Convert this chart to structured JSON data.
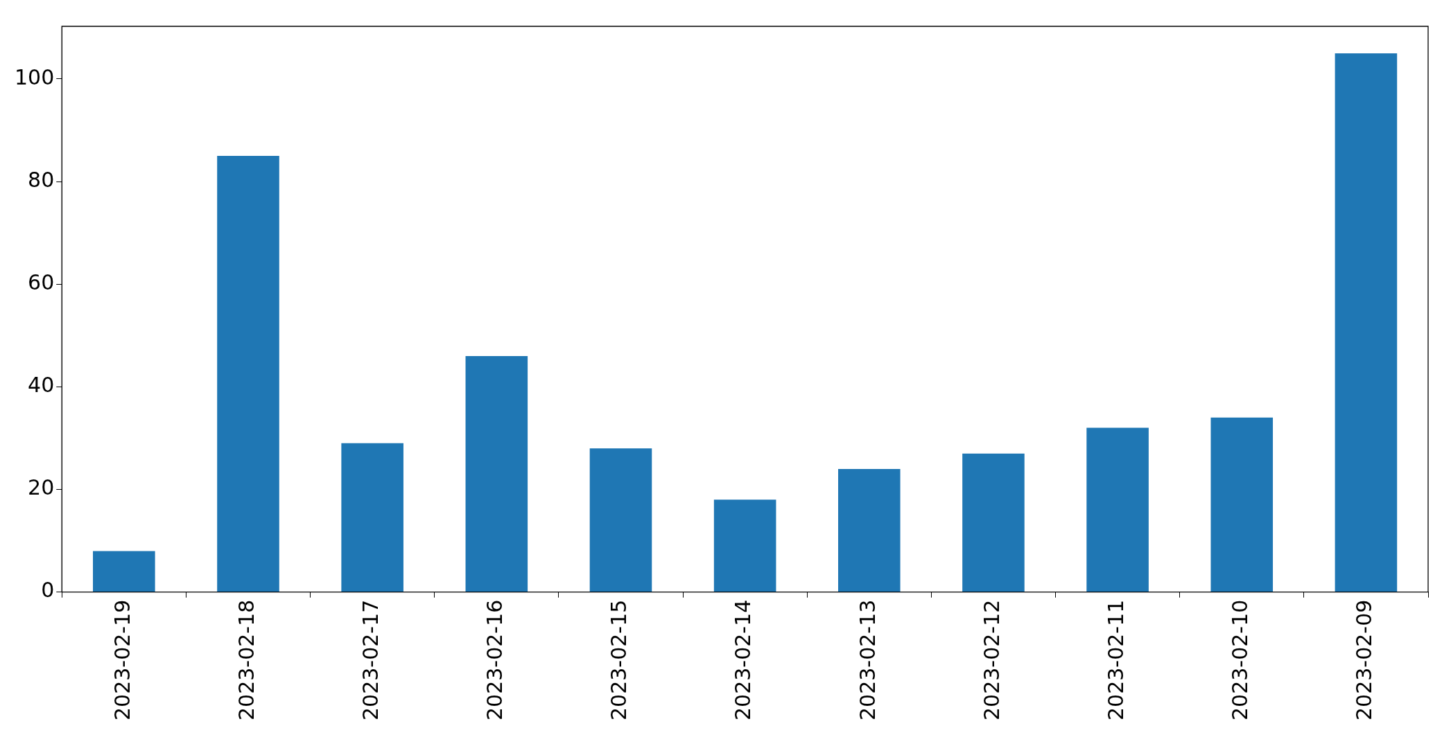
{
  "chart_data": {
    "type": "bar",
    "categories": [
      "2023-02-19",
      "2023-02-18",
      "2023-02-17",
      "2023-02-16",
      "2023-02-15",
      "2023-02-14",
      "2023-02-13",
      "2023-02-12",
      "2023-02-11",
      "2023-02-10",
      "2023-02-09"
    ],
    "values": [
      8,
      85,
      29,
      46,
      28,
      18,
      24,
      27,
      32,
      34,
      105
    ],
    "color": "#1f77b4",
    "ylim": [
      0,
      110.25
    ],
    "yticks": [
      0,
      20,
      40,
      60,
      80,
      100
    ],
    "grid": false,
    "legend": false
  }
}
